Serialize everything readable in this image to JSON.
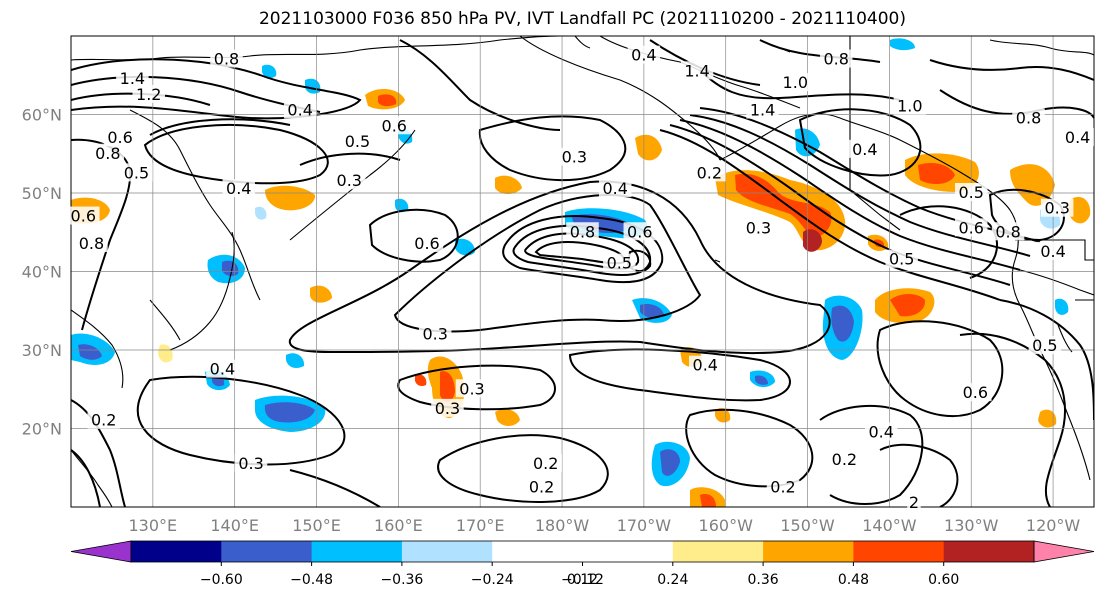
{
  "title": "2021103000 F036 850 hPa PV, IVT Landfall PC (2021110200 - 2021110400)",
  "map": {
    "lon_range": [
      120,
      245
    ],
    "lat_range": [
      10,
      70
    ],
    "lat_ticks": [
      {
        "lat": 20,
        "label": "20°N"
      },
      {
        "lat": 30,
        "label": "30°N"
      },
      {
        "lat": 40,
        "label": "40°N"
      },
      {
        "lat": 50,
        "label": "50°N"
      },
      {
        "lat": 60,
        "label": "60°N"
      }
    ],
    "lon_ticks": [
      {
        "lon": 130,
        "label": "130°E"
      },
      {
        "lon": 140,
        "label": "140°E"
      },
      {
        "lon": 150,
        "label": "150°E"
      },
      {
        "lon": 160,
        "label": "160°E"
      },
      {
        "lon": 170,
        "label": "170°E"
      },
      {
        "lon": 180,
        "label": "180°W"
      },
      {
        "lon": 190,
        "label": "170°W"
      },
      {
        "lon": 200,
        "label": "160°W"
      },
      {
        "lon": 210,
        "label": "150°W"
      },
      {
        "lon": 220,
        "label": "140°W"
      },
      {
        "lon": 230,
        "label": "130°W"
      },
      {
        "lon": 240,
        "label": "120°W"
      }
    ],
    "grid": true
  },
  "colorbar": {
    "colors": [
      "#9a32cd",
      "#00008b",
      "#3a5fcd",
      "#00bfff",
      "#b0e2ff",
      "#ffffff",
      "#ffffff",
      "#ffec8b",
      "#ffa500",
      "#ff4500",
      "#b22222",
      "#ff82ab"
    ],
    "tick_labels": [
      "−0.60",
      "−0.48",
      "−0.36",
      "−0.24",
      "−0.12",
      "0.12",
      "0.24",
      "0.36",
      "0.48",
      "0.60"
    ],
    "extend": "both"
  },
  "pv_contour_labels": [
    {
      "text": "1.4",
      "lon": 127.5,
      "lat": 64.5
    },
    {
      "text": "1.2",
      "lon": 129.5,
      "lat": 62.5
    },
    {
      "text": "0.8",
      "lon": 139,
      "lat": 67
    },
    {
      "text": "0.6",
      "lon": 159.5,
      "lat": 58.5
    },
    {
      "text": "0.5",
      "lon": 155,
      "lat": 56.5
    },
    {
      "text": "0.4",
      "lon": 190,
      "lat": 67.5
    },
    {
      "text": "0.4",
      "lon": 148,
      "lat": 60.5
    },
    {
      "text": "0.6",
      "lon": 126,
      "lat": 57
    },
    {
      "text": "0.8",
      "lon": 124.5,
      "lat": 55
    },
    {
      "text": "0.5",
      "lon": 128,
      "lat": 52.5
    },
    {
      "text": "0.4",
      "lon": 140.5,
      "lat": 50.5
    },
    {
      "text": "0.3",
      "lon": 154,
      "lat": 51.5
    },
    {
      "text": "0.6",
      "lon": 121.5,
      "lat": 47
    },
    {
      "text": "0.8",
      "lon": 122.5,
      "lat": 43.5
    },
    {
      "text": "0.6",
      "lon": 163.5,
      "lat": 43.5
    },
    {
      "text": "0.3",
      "lon": 181.5,
      "lat": 54.5
    },
    {
      "text": "0.4",
      "lon": 186.5,
      "lat": 50.5
    },
    {
      "text": "0.8",
      "lon": 182.5,
      "lat": 45
    },
    {
      "text": "0.6",
      "lon": 189.5,
      "lat": 45
    },
    {
      "text": "0.5",
      "lon": 187,
      "lat": 41
    },
    {
      "text": "0.2",
      "lon": 198,
      "lat": 52.5
    },
    {
      "text": "1.4",
      "lon": 196.5,
      "lat": 65.5
    },
    {
      "text": "1.4",
      "lon": 204.5,
      "lat": 60.5
    },
    {
      "text": "1.0",
      "lon": 208.5,
      "lat": 64
    },
    {
      "text": "0.8",
      "lon": 213.5,
      "lat": 67
    },
    {
      "text": "1.0",
      "lon": 222.5,
      "lat": 61
    },
    {
      "text": "0.4",
      "lon": 217,
      "lat": 55.5
    },
    {
      "text": "0.3",
      "lon": 204,
      "lat": 45.5
    },
    {
      "text": "0.5",
      "lon": 221.5,
      "lat": 41.5
    },
    {
      "text": "0.5",
      "lon": 230,
      "lat": 50
    },
    {
      "text": "0.6",
      "lon": 230,
      "lat": 45.5
    },
    {
      "text": "0.8",
      "lon": 234.5,
      "lat": 45
    },
    {
      "text": "0.4",
      "lon": 240,
      "lat": 42.5
    },
    {
      "text": "0.3",
      "lon": 240.5,
      "lat": 48
    },
    {
      "text": "0.8",
      "lon": 237,
      "lat": 59.5
    },
    {
      "text": "0.4",
      "lon": 243,
      "lat": 57
    },
    {
      "text": "0.3",
      "lon": 164.5,
      "lat": 32
    },
    {
      "text": "0.4",
      "lon": 197.5,
      "lat": 28
    },
    {
      "text": "0.4",
      "lon": 138.5,
      "lat": 27.5
    },
    {
      "text": "0.3",
      "lon": 166,
      "lat": 22.5
    },
    {
      "text": "0.3",
      "lon": 169,
      "lat": 25
    },
    {
      "text": "0.2",
      "lon": 124,
      "lat": 21
    },
    {
      "text": "0.3",
      "lon": 142,
      "lat": 15.5
    },
    {
      "text": "0.2",
      "lon": 178,
      "lat": 15.5
    },
    {
      "text": "0.2",
      "lon": 177.5,
      "lat": 12.5
    },
    {
      "text": "0.4",
      "lon": 219,
      "lat": 19.5
    },
    {
      "text": "0.2",
      "lon": 214.5,
      "lat": 16
    },
    {
      "text": "0.2",
      "lon": 207,
      "lat": 12.5
    },
    {
      "text": "0.6",
      "lon": 230.5,
      "lat": 24.5
    },
    {
      "text": "0.5",
      "lon": 239,
      "lat": 30.5
    },
    {
      "text": "2",
      "lon": 223,
      "lat": 10.5
    }
  ]
}
